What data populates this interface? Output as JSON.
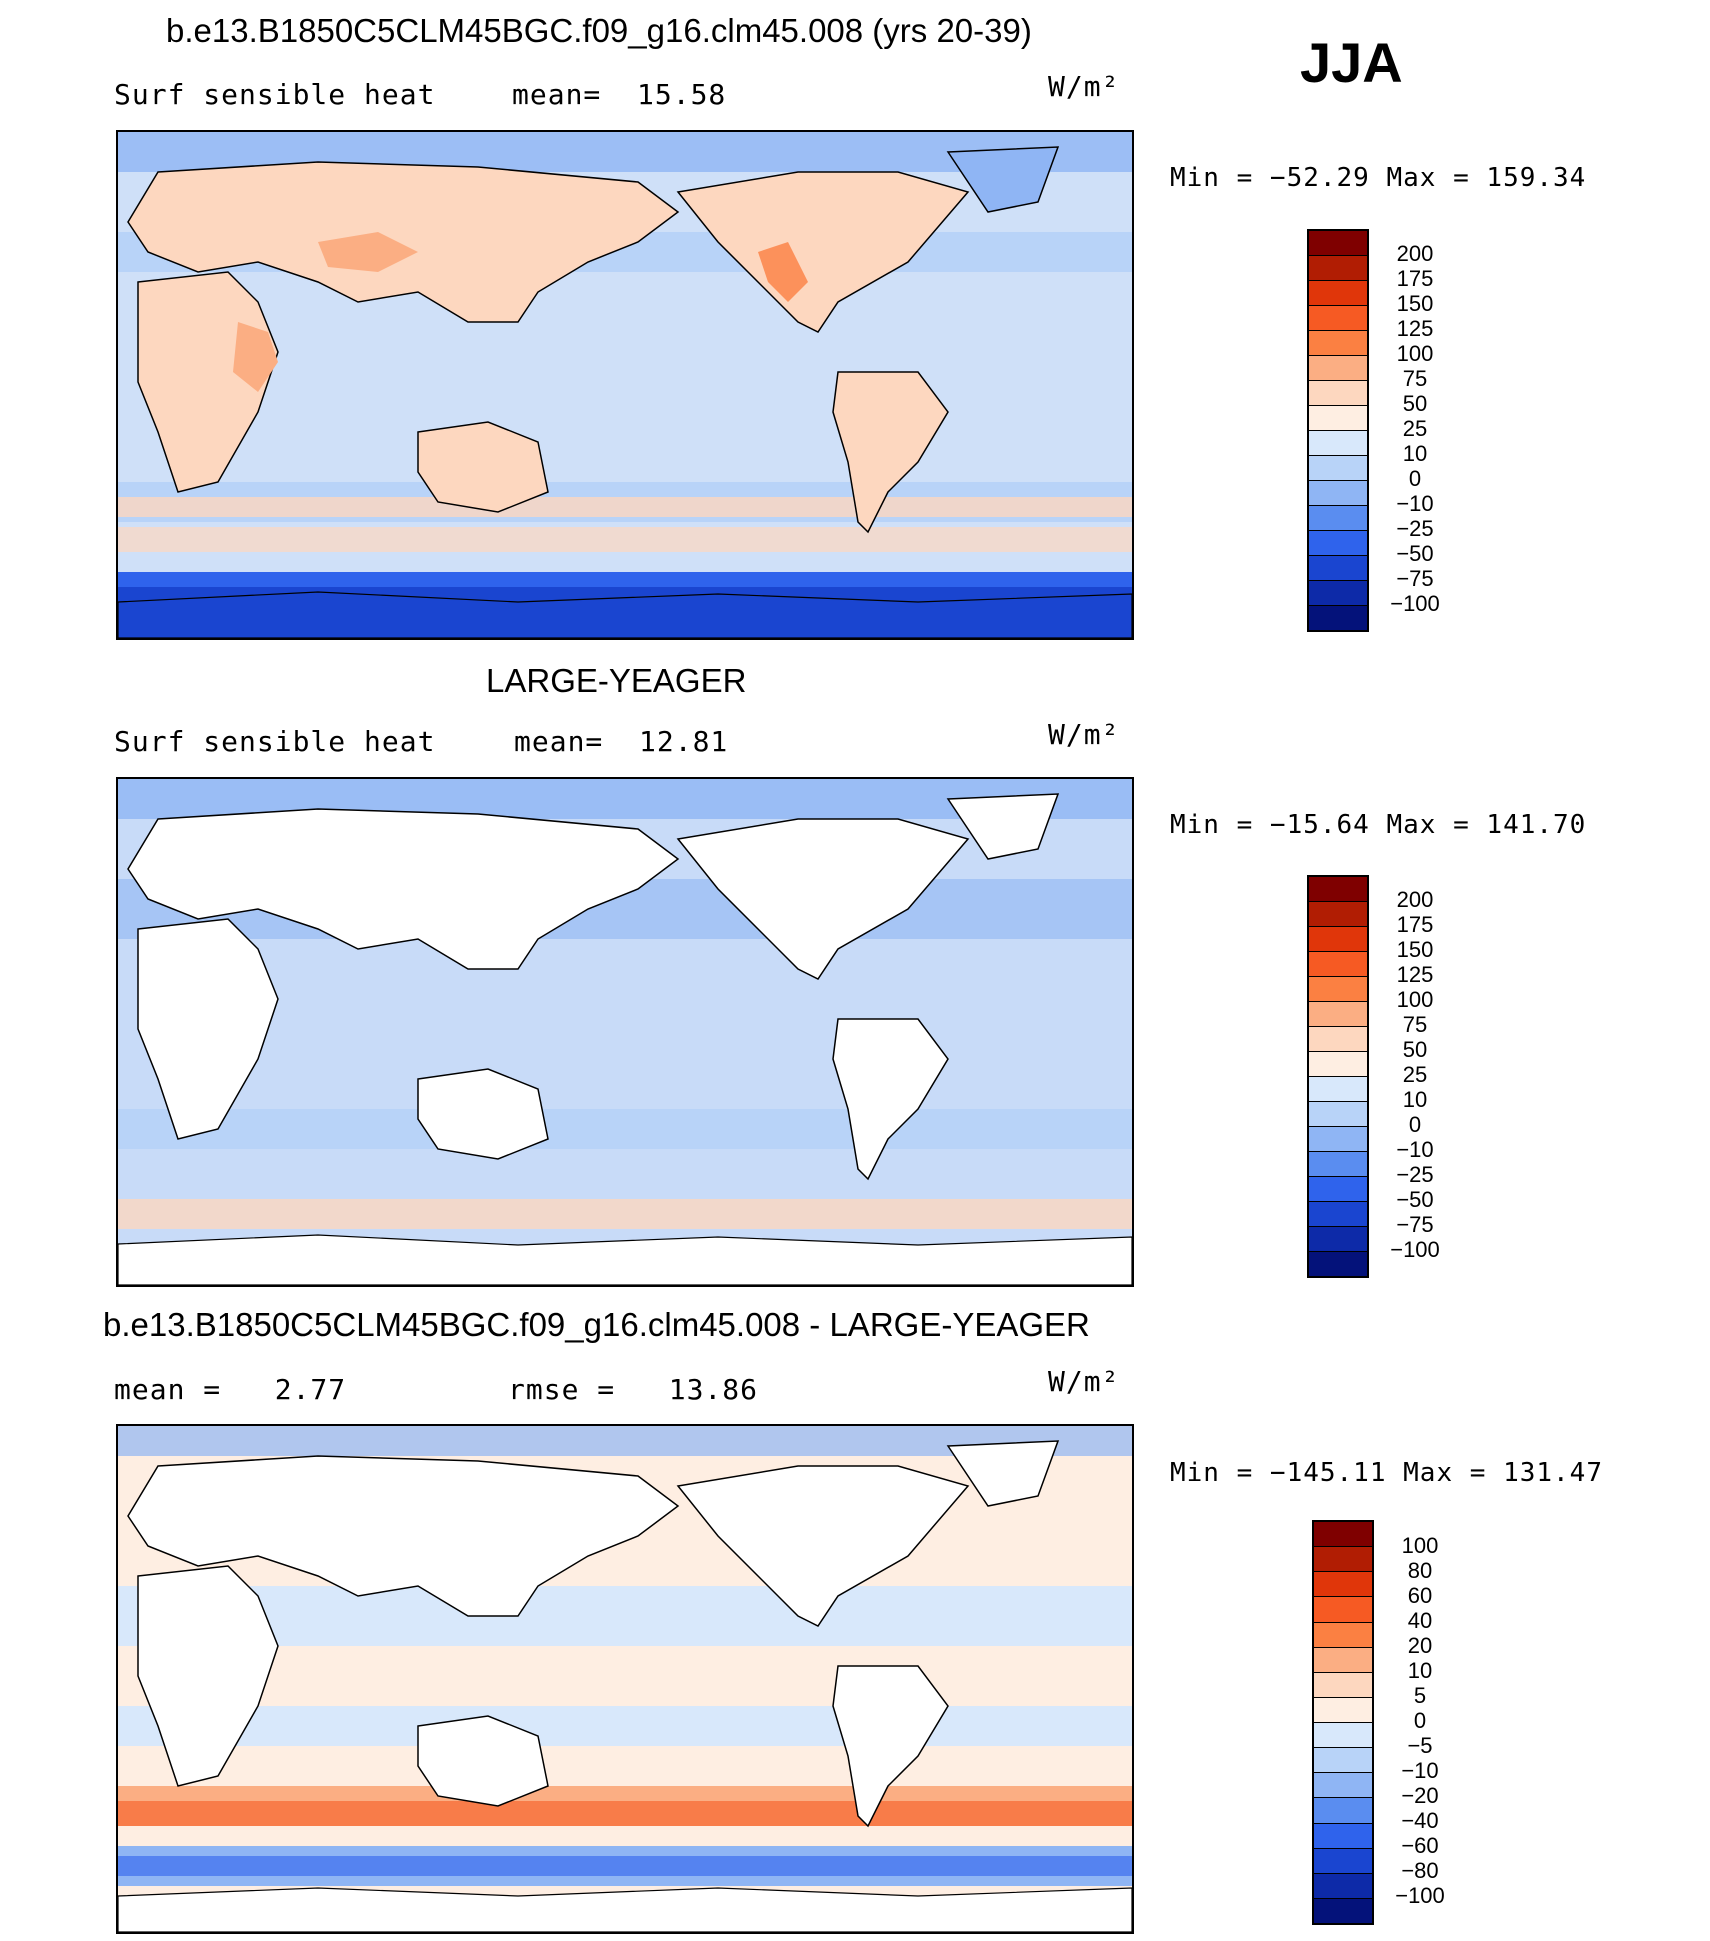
{
  "season": "JJA",
  "panels": [
    {
      "title": "b.e13.B1850C5CLM45BGC.f09_g16.clm45.008 (yrs 20-39)",
      "left_label": "Surf sensible heat",
      "center_label": "mean=  15.58",
      "units": "W/m²",
      "minmax": "Min = −52.29 Max = 159.34",
      "land_filled": true,
      "colorbar": {
        "ticks": [
          "200",
          "175",
          "150",
          "125",
          "100",
          "75",
          "50",
          "25",
          "10",
          "0",
          "−10",
          "−25",
          "−50",
          "−75",
          "−100"
        ],
        "colors": [
          "#7f0000",
          "#b11d03",
          "#e0360a",
          "#f65a23",
          "#fb8042",
          "#fbae83",
          "#fdd7bf",
          "#feeee2",
          "#d8e8fb",
          "#b8d3f8",
          "#8fb5f4",
          "#5a8df0",
          "#2f63ec",
          "#1a45d0",
          "#0d2aa8",
          "#04127a"
        ]
      }
    },
    {
      "title": "LARGE-YEAGER",
      "left_label": "Surf sensible heat",
      "center_label": "mean=  12.81",
      "units": "W/m²",
      "minmax": "Min = −15.64 Max = 141.70",
      "land_filled": false,
      "colorbar": {
        "ticks": [
          "200",
          "175",
          "150",
          "125",
          "100",
          "75",
          "50",
          "25",
          "10",
          "0",
          "−10",
          "−25",
          "−50",
          "−75",
          "−100"
        ],
        "colors": [
          "#7f0000",
          "#b11d03",
          "#e0360a",
          "#f65a23",
          "#fb8042",
          "#fbae83",
          "#fdd7bf",
          "#feeee2",
          "#d8e8fb",
          "#b8d3f8",
          "#8fb5f4",
          "#5a8df0",
          "#2f63ec",
          "#1a45d0",
          "#0d2aa8",
          "#04127a"
        ]
      }
    },
    {
      "title": "b.e13.B1850C5CLM45BGC.f09_g16.clm45.008 - LARGE-YEAGER",
      "left_label": "mean =   2.77",
      "center_label": "rmse =   13.86",
      "units": "W/m²",
      "minmax": "Min = −145.11 Max = 131.47",
      "land_filled": false,
      "colorbar": {
        "ticks": [
          "100",
          "80",
          "60",
          "40",
          "20",
          "10",
          "5",
          "0",
          "−5",
          "−10",
          "−20",
          "−40",
          "−60",
          "−80",
          "−100"
        ],
        "colors": [
          "#7f0000",
          "#b11d03",
          "#e0360a",
          "#f65a23",
          "#fb8042",
          "#fbae83",
          "#fdd7bf",
          "#feeee2",
          "#d8e8fb",
          "#b8d3f8",
          "#8fb5f4",
          "#5a8df0",
          "#2f63ec",
          "#1a45d0",
          "#0d2aa8",
          "#04127a"
        ]
      }
    }
  ]
}
